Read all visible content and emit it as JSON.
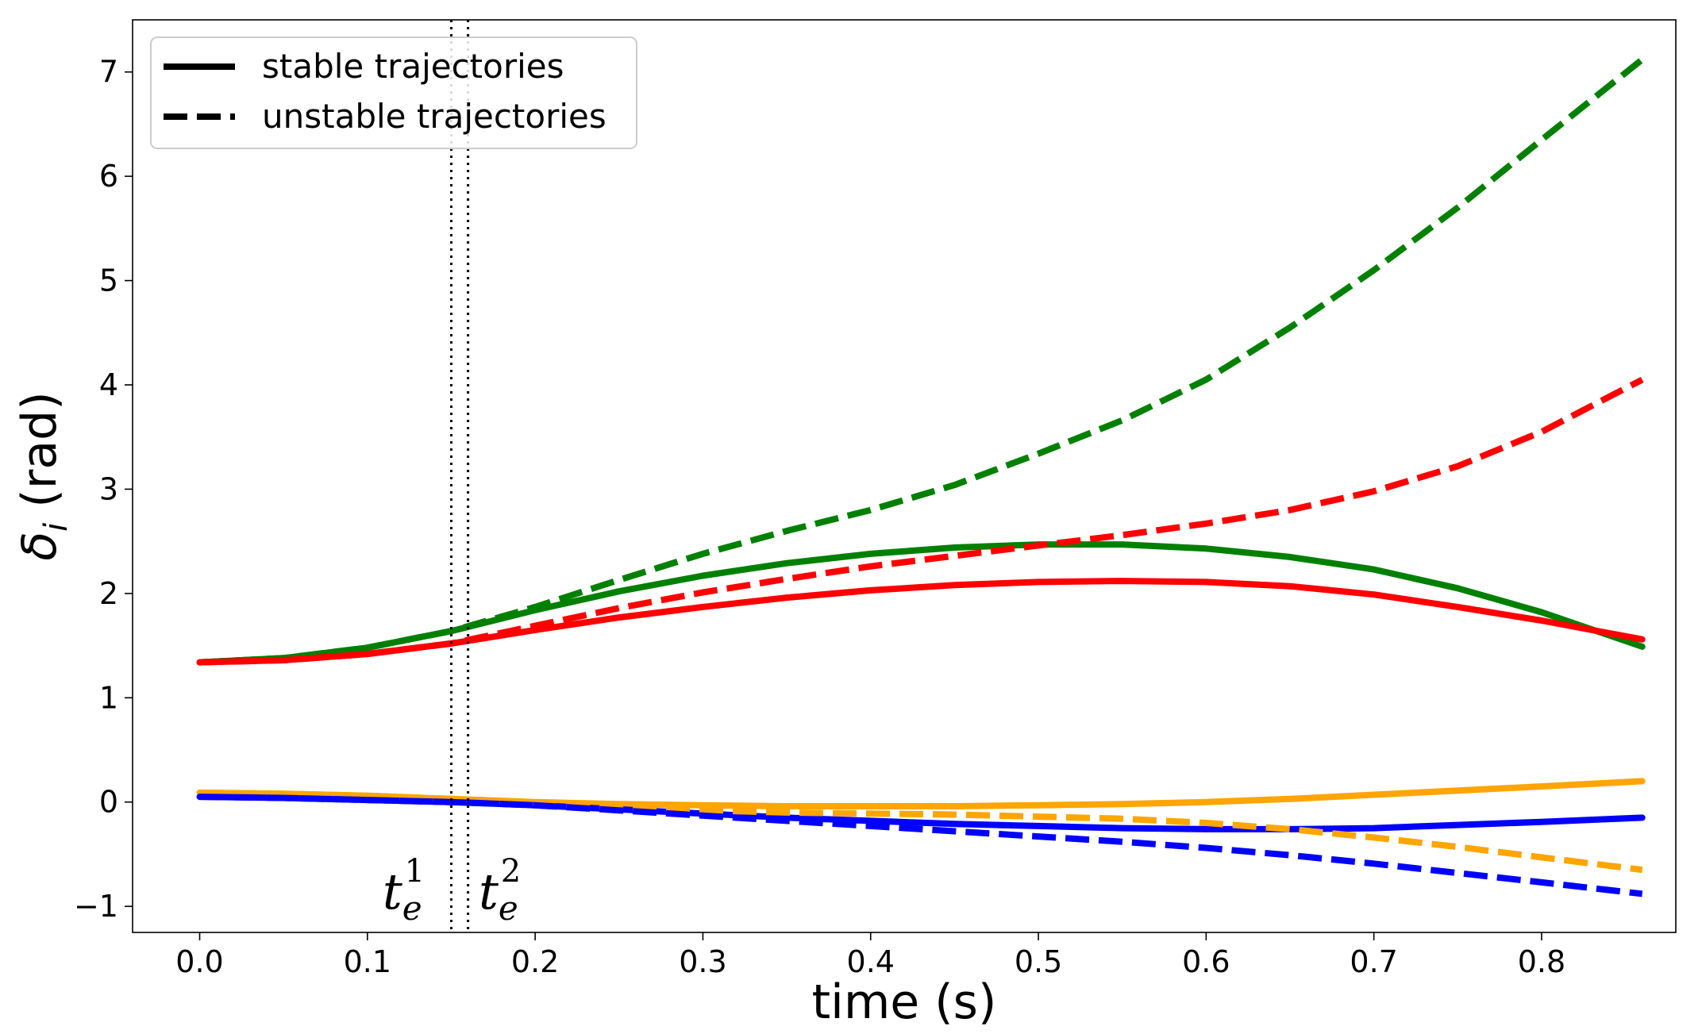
{
  "chart_data": {
    "type": "line",
    "title": "",
    "xlabel": "time (s)",
    "ylabel_symbol": "δ",
    "ylabel_subscript": "i",
    "ylabel_unit": "(rad)",
    "xlim": [
      -0.04,
      0.88
    ],
    "ylim": [
      -1.25,
      7.5
    ],
    "xticks": [
      0.0,
      0.1,
      0.2,
      0.3,
      0.4,
      0.5,
      0.6,
      0.7,
      0.8
    ],
    "xtick_labels": [
      "0.0",
      "0.1",
      "0.2",
      "0.3",
      "0.4",
      "0.5",
      "0.6",
      "0.7",
      "0.8"
    ],
    "yticks": [
      -1,
      0,
      1,
      2,
      3,
      4,
      5,
      6,
      7
    ],
    "ytick_labels": [
      "−1",
      "0",
      "1",
      "2",
      "3",
      "4",
      "5",
      "6",
      "7"
    ],
    "grid": false,
    "legend": {
      "position": "top-left",
      "entries": [
        {
          "label": "stable trajectories",
          "style": "solid"
        },
        {
          "label": "unstable trajectories",
          "style": "dashed"
        }
      ]
    },
    "vlines": [
      {
        "x": 0.15,
        "style": "dotted",
        "label_base": "t",
        "label_sub": "e",
        "label_sup": "1"
      },
      {
        "x": 0.16,
        "style": "dotted",
        "label_base": "t",
        "label_sub": "e",
        "label_sup": "2"
      }
    ],
    "series": [
      {
        "name": "green stable",
        "color": "#008000",
        "style": "solid",
        "x": [
          0.0,
          0.05,
          0.1,
          0.15,
          0.2,
          0.25,
          0.3,
          0.35,
          0.4,
          0.45,
          0.5,
          0.55,
          0.6,
          0.65,
          0.7,
          0.75,
          0.8,
          0.86
        ],
        "y": [
          1.34,
          1.38,
          1.48,
          1.64,
          1.84,
          2.02,
          2.17,
          2.29,
          2.38,
          2.44,
          2.47,
          2.47,
          2.43,
          2.35,
          2.23,
          2.05,
          1.82,
          1.49
        ]
      },
      {
        "name": "red stable",
        "color": "#ff0000",
        "style": "solid",
        "x": [
          0.0,
          0.05,
          0.1,
          0.15,
          0.2,
          0.25,
          0.3,
          0.35,
          0.4,
          0.45,
          0.5,
          0.55,
          0.6,
          0.65,
          0.7,
          0.75,
          0.8,
          0.86
        ],
        "y": [
          1.34,
          1.36,
          1.42,
          1.52,
          1.65,
          1.77,
          1.87,
          1.96,
          2.03,
          2.08,
          2.11,
          2.12,
          2.11,
          2.07,
          1.99,
          1.87,
          1.74,
          1.56
        ]
      },
      {
        "name": "green unstable",
        "color": "#008000",
        "style": "dashed",
        "x": [
          0.0,
          0.05,
          0.1,
          0.15,
          0.2,
          0.25,
          0.3,
          0.35,
          0.4,
          0.45,
          0.5,
          0.55,
          0.6,
          0.65,
          0.7,
          0.75,
          0.8,
          0.86
        ],
        "y": [
          1.34,
          1.38,
          1.48,
          1.64,
          1.87,
          2.13,
          2.38,
          2.6,
          2.8,
          3.04,
          3.34,
          3.66,
          4.05,
          4.55,
          5.1,
          5.7,
          6.35,
          7.12
        ]
      },
      {
        "name": "red unstable",
        "color": "#ff0000",
        "style": "dashed",
        "x": [
          0.0,
          0.05,
          0.1,
          0.15,
          0.2,
          0.25,
          0.3,
          0.35,
          0.4,
          0.45,
          0.5,
          0.55,
          0.6,
          0.65,
          0.7,
          0.75,
          0.8,
          0.86
        ],
        "y": [
          1.34,
          1.36,
          1.42,
          1.52,
          1.69,
          1.86,
          2.01,
          2.14,
          2.26,
          2.36,
          2.46,
          2.56,
          2.67,
          2.8,
          2.98,
          3.22,
          3.55,
          4.05
        ]
      },
      {
        "name": "orange stable",
        "color": "#ffa500",
        "style": "solid",
        "x": [
          0.0,
          0.05,
          0.1,
          0.15,
          0.2,
          0.25,
          0.3,
          0.35,
          0.4,
          0.45,
          0.5,
          0.55,
          0.6,
          0.65,
          0.7,
          0.75,
          0.8,
          0.86
        ],
        "y": [
          0.09,
          0.08,
          0.06,
          0.03,
          0.0,
          -0.02,
          -0.03,
          -0.04,
          -0.04,
          -0.04,
          -0.03,
          -0.02,
          0.0,
          0.03,
          0.07,
          0.11,
          0.15,
          0.2
        ]
      },
      {
        "name": "blue stable",
        "color": "#0000ff",
        "style": "solid",
        "x": [
          0.0,
          0.05,
          0.1,
          0.15,
          0.2,
          0.25,
          0.3,
          0.35,
          0.4,
          0.45,
          0.5,
          0.55,
          0.6,
          0.65,
          0.7,
          0.75,
          0.8,
          0.86
        ],
        "y": [
          0.05,
          0.04,
          0.02,
          0.0,
          -0.03,
          -0.07,
          -0.11,
          -0.15,
          -0.18,
          -0.21,
          -0.23,
          -0.25,
          -0.26,
          -0.26,
          -0.25,
          -0.22,
          -0.19,
          -0.15
        ]
      },
      {
        "name": "orange unstable",
        "color": "#ffa500",
        "style": "dashed",
        "x": [
          0.0,
          0.05,
          0.1,
          0.15,
          0.2,
          0.25,
          0.3,
          0.35,
          0.4,
          0.45,
          0.5,
          0.55,
          0.6,
          0.65,
          0.7,
          0.75,
          0.8,
          0.86
        ],
        "y": [
          0.09,
          0.08,
          0.06,
          0.03,
          -0.01,
          -0.05,
          -0.08,
          -0.1,
          -0.11,
          -0.12,
          -0.14,
          -0.16,
          -0.2,
          -0.26,
          -0.34,
          -0.43,
          -0.53,
          -0.65
        ]
      },
      {
        "name": "blue unstable",
        "color": "#0000ff",
        "style": "dashed",
        "x": [
          0.0,
          0.05,
          0.1,
          0.15,
          0.2,
          0.25,
          0.3,
          0.35,
          0.4,
          0.45,
          0.5,
          0.55,
          0.6,
          0.65,
          0.7,
          0.75,
          0.8,
          0.86
        ],
        "y": [
          0.05,
          0.04,
          0.02,
          0.0,
          -0.03,
          -0.08,
          -0.13,
          -0.18,
          -0.23,
          -0.28,
          -0.33,
          -0.38,
          -0.44,
          -0.51,
          -0.59,
          -0.68,
          -0.77,
          -0.88
        ]
      }
    ]
  }
}
